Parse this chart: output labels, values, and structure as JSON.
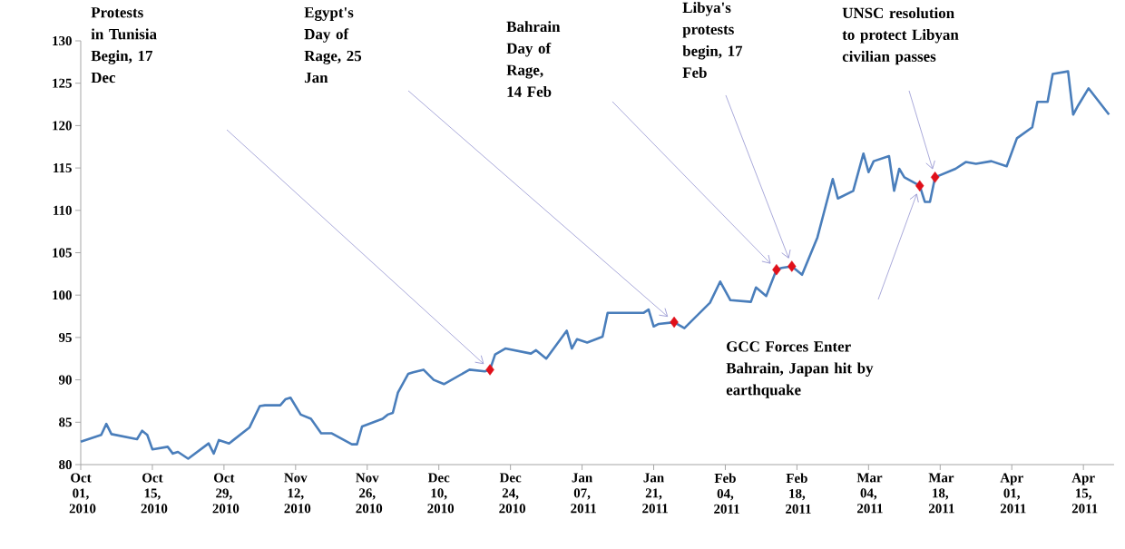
{
  "chart_data": {
    "type": "line",
    "xlim": [
      "2010-10-01",
      "2011-04-21"
    ],
    "ylim": [
      80,
      130
    ],
    "xticks": [
      {
        "value": "2010-10-01",
        "label": "Oct 01, 2010"
      },
      {
        "value": "2010-10-15",
        "label": "Oct 15, 2010"
      },
      {
        "value": "2010-10-29",
        "label": "Oct 29, 2010"
      },
      {
        "value": "2010-11-12",
        "label": "Nov 12, 2010"
      },
      {
        "value": "2010-11-26",
        "label": "Nov 26, 2010"
      },
      {
        "value": "2010-12-10",
        "label": "Dec 10, 2010"
      },
      {
        "value": "2010-12-24",
        "label": "Dec 24, 2010"
      },
      {
        "value": "2011-01-07",
        "label": "Jan 07, 2011"
      },
      {
        "value": "2011-01-21",
        "label": "Jan 21, 2011"
      },
      {
        "value": "2011-02-04",
        "label": "Feb 04, 2011"
      },
      {
        "value": "2011-02-18",
        "label": "Feb 18, 2011"
      },
      {
        "value": "2011-03-04",
        "label": "Mar 04, 2011"
      },
      {
        "value": "2011-03-18",
        "label": "Mar 18, 2011"
      },
      {
        "value": "2011-04-01",
        "label": "Apr 01, 2011"
      },
      {
        "value": "2011-04-15",
        "label": "Apr 15, 2011"
      }
    ],
    "yticks": [
      80,
      85,
      90,
      95,
      100,
      105,
      110,
      115,
      120,
      125,
      130
    ],
    "series": [
      {
        "color": "#4a7ebb",
        "marker": "none",
        "x": [
          "2010-10-01",
          "2010-10-05",
          "2010-10-06",
          "2010-10-07",
          "2010-10-12",
          "2010-10-13",
          "2010-10-14",
          "2010-10-15",
          "2010-10-18",
          "2010-10-19",
          "2010-10-20",
          "2010-10-22",
          "2010-10-26",
          "2010-10-27",
          "2010-10-28",
          "2010-10-30",
          "2010-11-03",
          "2010-11-05",
          "2010-11-06",
          "2010-11-09",
          "2010-11-10",
          "2010-11-11",
          "2010-11-13",
          "2010-11-15",
          "2010-11-17",
          "2010-11-19",
          "2010-11-23",
          "2010-11-24",
          "2010-11-25",
          "2010-11-29",
          "2010-11-30",
          "2010-12-01",
          "2010-12-02",
          "2010-12-04",
          "2010-12-05",
          "2010-12-07",
          "2010-12-09",
          "2010-12-11",
          "2010-12-16",
          "2010-12-19",
          "2010-12-20",
          "2010-12-21",
          "2010-12-23",
          "2010-12-28",
          "2010-12-29",
          "2010-12-31",
          "2011-01-04",
          "2011-01-05",
          "2011-01-06",
          "2011-01-08",
          "2011-01-11",
          "2011-01-12",
          "2011-01-19",
          "2011-01-20",
          "2011-01-21",
          "2011-01-22",
          "2011-01-25",
          "2011-01-27",
          "2011-02-01",
          "2011-02-03",
          "2011-02-05",
          "2011-02-09",
          "2011-02-10",
          "2011-02-12",
          "2011-02-14",
          "2011-02-15",
          "2011-02-17",
          "2011-02-19",
          "2011-02-22",
          "2011-02-25",
          "2011-02-26",
          "2011-03-01",
          "2011-03-03",
          "2011-03-04",
          "2011-03-05",
          "2011-03-08",
          "2011-03-09",
          "2011-03-10",
          "2011-03-11",
          "2011-03-14",
          "2011-03-15",
          "2011-03-16",
          "2011-03-17",
          "2011-03-21",
          "2011-03-23",
          "2011-03-25",
          "2011-03-28",
          "2011-03-31",
          "2011-04-02",
          "2011-04-05",
          "2011-04-06",
          "2011-04-08",
          "2011-04-09",
          "2011-04-12",
          "2011-04-13",
          "2011-04-14",
          "2011-04-16",
          "2011-04-20"
        ],
        "values": [
          82.7,
          83.5,
          84.8,
          83.6,
          83.0,
          84.0,
          83.5,
          81.8,
          82.1,
          81.3,
          81.5,
          80.7,
          82.5,
          81.3,
          82.9,
          82.5,
          84.4,
          86.9,
          87.0,
          87.0,
          87.7,
          87.9,
          85.9,
          85.4,
          83.7,
          83.7,
          82.4,
          82.4,
          84.5,
          85.4,
          85.9,
          86.1,
          88.5,
          90.7,
          90.9,
          91.2,
          90.0,
          89.5,
          91.2,
          91.0,
          91.2,
          93.0,
          93.7,
          93.1,
          93.5,
          92.5,
          95.8,
          93.7,
          94.8,
          94.4,
          95.1,
          97.9,
          97.9,
          98.3,
          96.3,
          96.6,
          96.8,
          96.1,
          99.1,
          101.6,
          99.4,
          99.2,
          100.9,
          99.9,
          103.0,
          103.2,
          103.4,
          102.4,
          106.8,
          113.7,
          111.4,
          112.3,
          116.7,
          114.5,
          115.8,
          116.4,
          112.3,
          114.9,
          113.9,
          112.9,
          111.0,
          111.0,
          113.9,
          114.9,
          115.7,
          115.5,
          115.8,
          115.2,
          118.5,
          119.8,
          122.8,
          122.8,
          126.1,
          126.4,
          121.3,
          122.4,
          124.4,
          121.3
        ]
      },
      {
        "type": "scatter",
        "color": "#e0101a",
        "marker": "diamond",
        "x": [
          "2010-12-20",
          "2011-01-25",
          "2011-02-14",
          "2011-02-17",
          "2011-03-14",
          "2011-03-17"
        ],
        "values": [
          91.2,
          96.8,
          103.0,
          103.4,
          112.9,
          113.9
        ]
      }
    ],
    "annotations": [
      "Protests in Tunisia Begin, 17 Dec",
      "Egypt's Day of Rage, 25 Jan",
      "Bahrain Day of Rage, 14 Feb",
      "Libya's protests begin, 17 Feb",
      "UNSC resolution to protect Libyan civilian passes",
      "GCC Forces Enter Bahrain, Japan hit by earthquake"
    ]
  }
}
